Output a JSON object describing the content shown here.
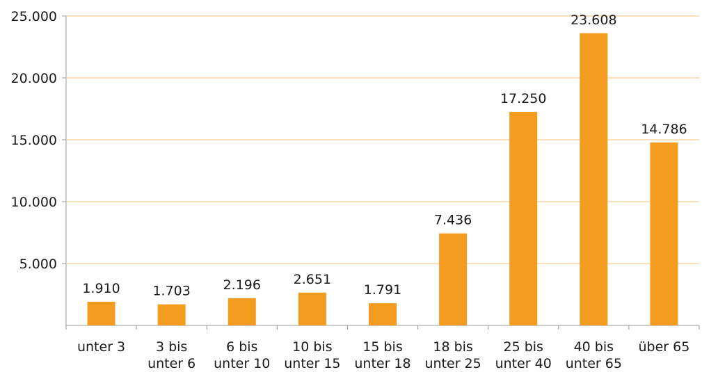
{
  "chart_data": {
    "type": "bar",
    "categories": [
      "unter 3",
      "3 bis\nunter 6",
      "6 bis\nunter 10",
      "10 bis\nunter 15",
      "15 bis\nunter 18",
      "18 bis\nunter 25",
      "25 bis\nunter 40",
      "40 bis\nunter 65",
      "über 65"
    ],
    "values": [
      1910,
      1703,
      2196,
      2651,
      1791,
      7436,
      17250,
      23608,
      14786
    ],
    "value_labels": [
      "1.910",
      "1.703",
      "2.196",
      "2.651",
      "1.791",
      "7.436",
      "17.250",
      "23.608",
      "14.786"
    ],
    "color": "#f39c1f",
    "ylim": [
      0,
      25000
    ],
    "yticks": [
      {
        "value": 5000,
        "label": "5.000"
      },
      {
        "value": 10000,
        "label": "10.000"
      },
      {
        "value": 15000,
        "label": "15.000"
      },
      {
        "value": 20000,
        "label": "20.000"
      },
      {
        "value": 25000,
        "label": "25.000"
      }
    ],
    "grid": true
  }
}
